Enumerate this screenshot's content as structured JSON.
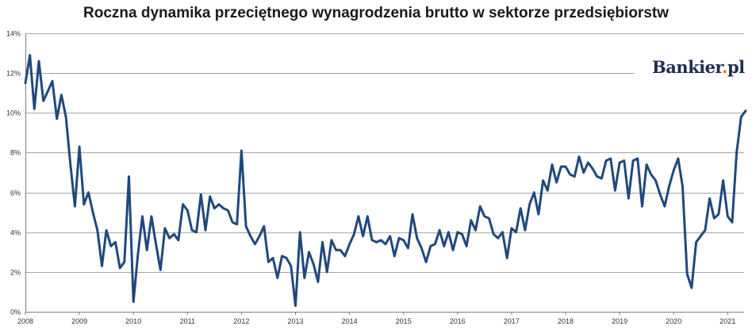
{
  "chart_data": {
    "type": "line",
    "title": "Roczna dynamika przeciętnego wynagrodzenia brutto w sektorze przedsiębiorstw",
    "xlabel": "",
    "ylabel": "",
    "ylim": [
      0,
      14
    ],
    "y_ticks": [
      "0%",
      "2%",
      "4%",
      "6%",
      "8%",
      "10%",
      "12%",
      "14%"
    ],
    "x_ticks": [
      "2008",
      "2009",
      "2010",
      "2011",
      "2012",
      "2013",
      "2014",
      "2015",
      "2016",
      "2017",
      "2018",
      "2019",
      "2020",
      "2021"
    ],
    "grid": true,
    "legend": "none",
    "x_start": "2008-01",
    "series": [
      {
        "values": [
          11.5,
          12.9,
          10.2,
          12.6,
          10.6,
          11.1,
          11.6,
          9.7,
          10.9,
          9.8,
          7.4,
          5.3,
          8.3,
          5.4,
          6.0,
          5.0,
          4.1,
          2.3,
          4.1,
          3.3,
          3.5,
          2.2,
          2.5,
          6.8,
          0.5,
          2.9,
          4.8,
          3.1,
          4.8,
          3.4,
          2.1,
          4.2,
          3.7,
          3.9,
          3.6,
          5.4,
          5.1,
          4.1,
          4.0,
          5.9,
          4.1,
          5.8,
          5.2,
          5.4,
          5.2,
          5.1,
          4.5,
          4.4,
          8.1,
          4.3,
          3.8,
          3.4,
          3.8,
          4.3,
          2.5,
          2.7,
          1.7,
          2.8,
          2.7,
          2.3,
          0.3,
          4.0,
          1.7,
          3.0,
          2.4,
          1.5,
          3.5,
          2.0,
          3.6,
          3.1,
          3.1,
          2.8,
          3.4,
          3.9,
          4.8,
          3.8,
          4.8,
          3.6,
          3.5,
          3.6,
          3.4,
          3.8,
          2.8,
          3.7,
          3.6,
          3.2,
          4.9,
          3.7,
          3.2,
          2.5,
          3.3,
          3.4,
          4.1,
          3.3,
          4.0,
          3.1,
          4.0,
          3.9,
          3.3,
          4.6,
          4.1,
          5.3,
          4.8,
          4.7,
          3.9,
          3.7,
          4.0,
          2.7,
          4.2,
          4.0,
          5.2,
          4.1,
          5.4,
          6.0,
          4.9,
          6.6,
          6.1,
          7.4,
          6.5,
          7.3,
          7.3,
          6.9,
          6.8,
          7.8,
          7.0,
          7.5,
          7.2,
          6.8,
          6.7,
          7.6,
          7.7,
          6.1,
          7.5,
          7.6,
          5.7,
          7.6,
          7.7,
          5.3,
          7.4,
          6.9,
          6.6,
          5.9,
          5.3,
          6.3,
          7.1,
          7.7,
          6.3,
          1.9,
          1.2,
          3.5,
          3.8,
          4.1,
          5.7,
          4.7,
          4.9,
          6.6,
          4.8,
          4.5,
          8.0,
          9.8,
          10.1
        ]
      }
    ]
  },
  "logo": {
    "text": "Bankier",
    "dot": ".",
    "suffix": "pl"
  }
}
